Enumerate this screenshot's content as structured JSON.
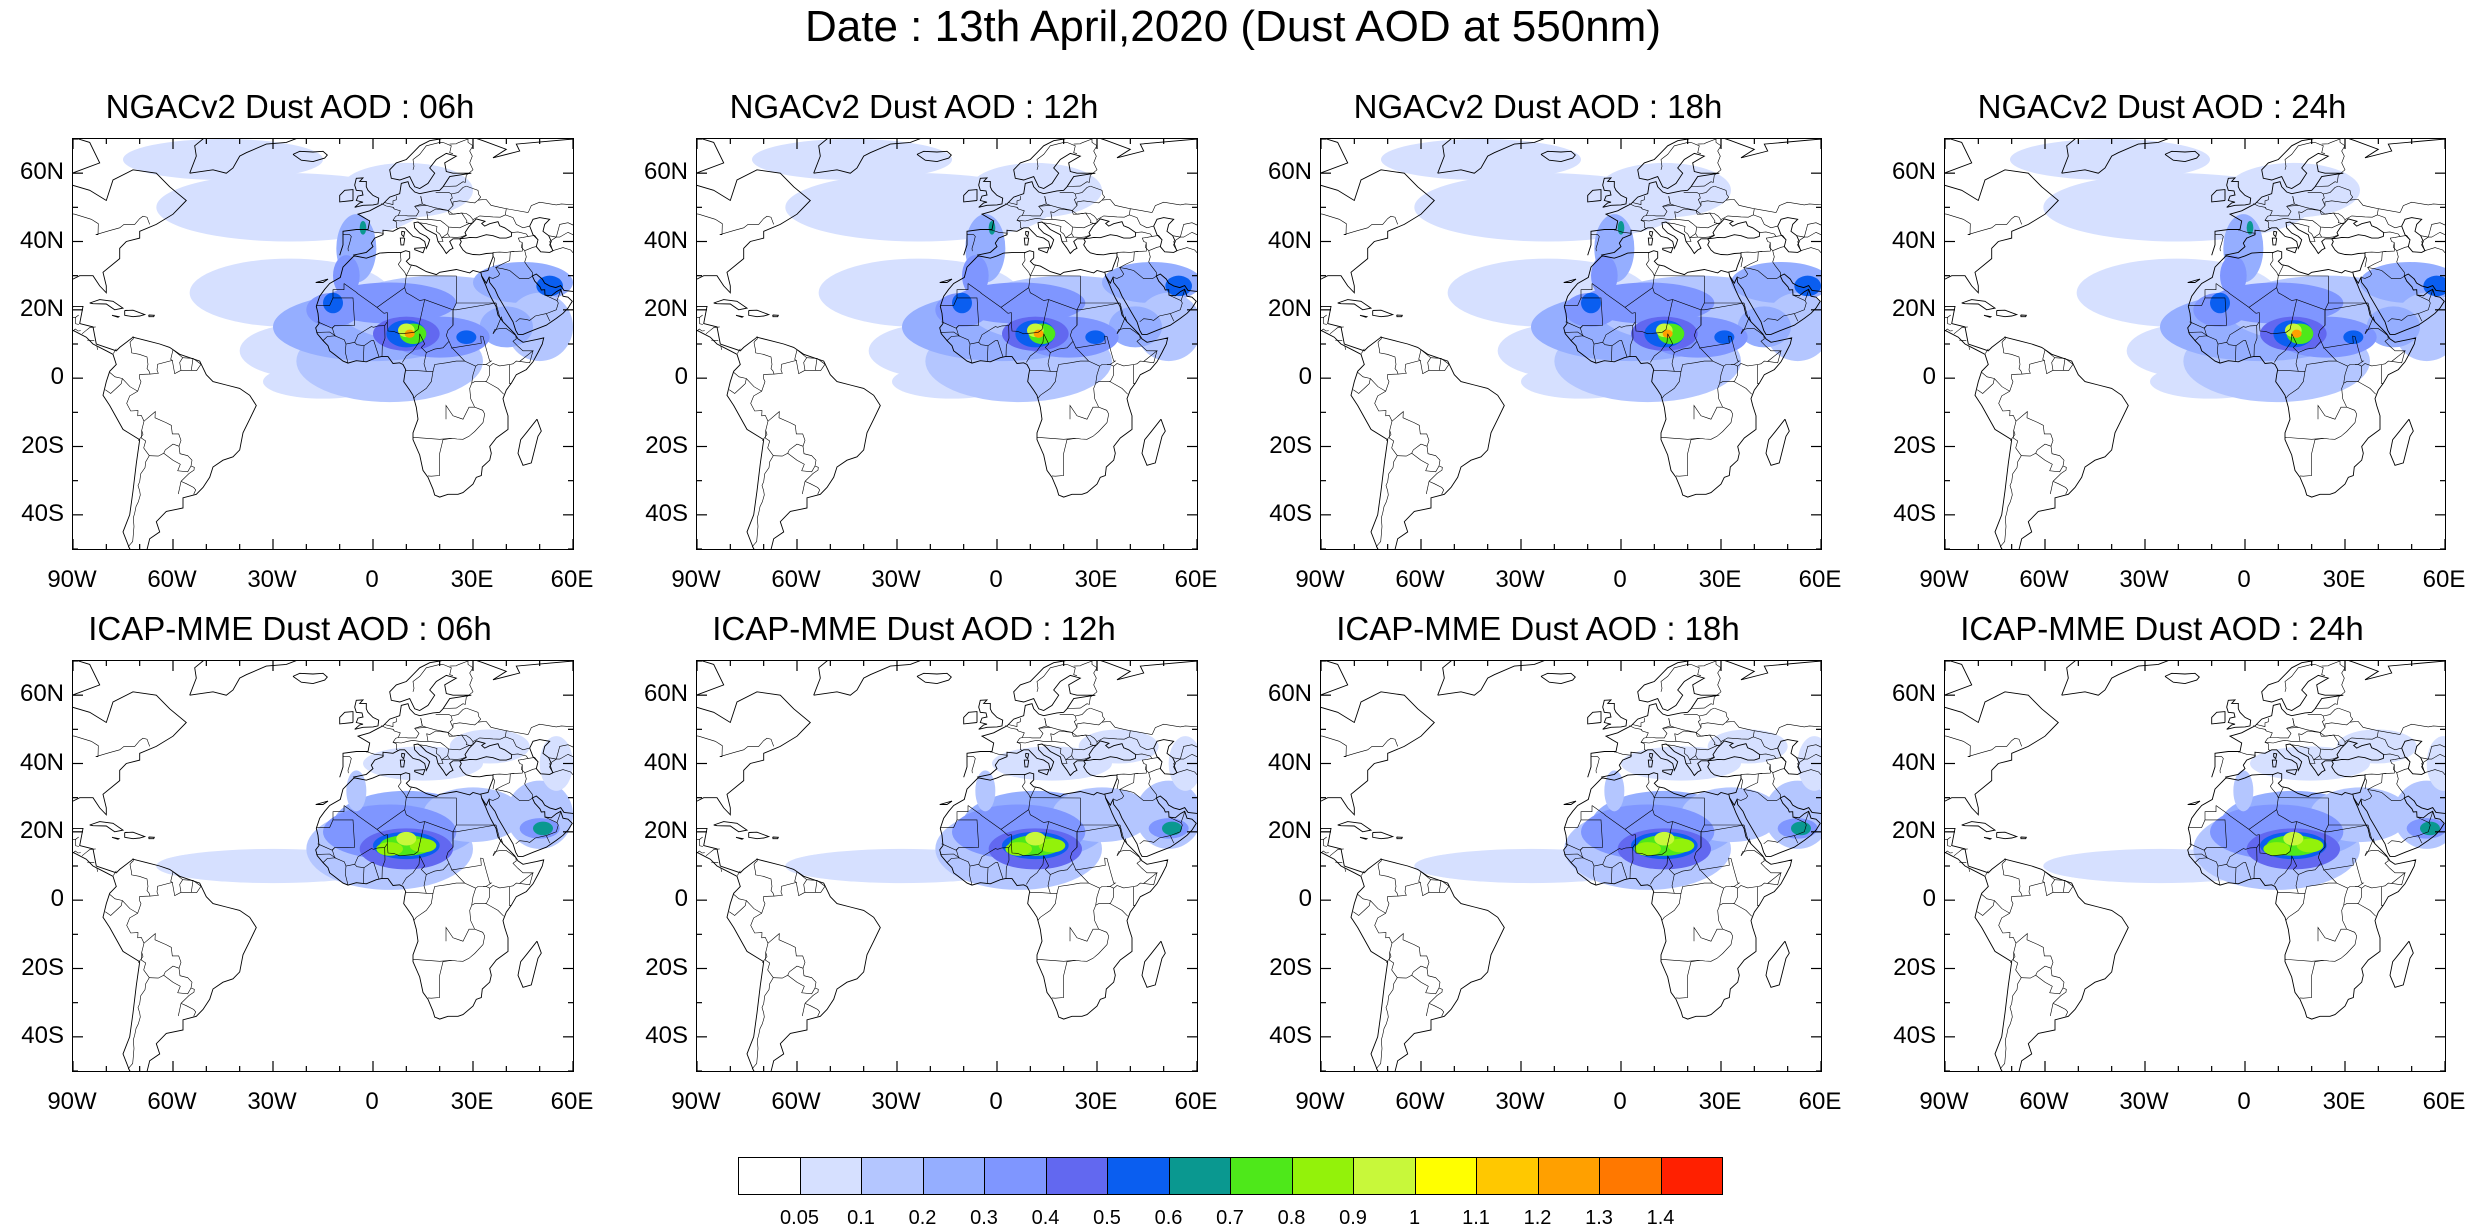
{
  "title": "Date : 13th April,2020 (Dust AOD at 550nm)",
  "panels": [
    {
      "title": "NGACv2 Dust AOD : 06h"
    },
    {
      "title": "NGACv2 Dust AOD : 12h"
    },
    {
      "title": "NGACv2 Dust AOD : 18h"
    },
    {
      "title": "NGACv2 Dust AOD : 24h"
    },
    {
      "title": "ICAP-MME Dust AOD : 06h"
    },
    {
      "title": "ICAP-MME Dust AOD : 12h"
    },
    {
      "title": "ICAP-MME Dust AOD : 18h"
    },
    {
      "title": "ICAP-MME Dust AOD : 24h"
    }
  ],
  "axes": {
    "lat_labels": [
      "60N",
      "40N",
      "20N",
      "0",
      "20S",
      "40S"
    ],
    "lat_values": [
      60,
      40,
      20,
      0,
      -20,
      -40
    ],
    "lon_labels": [
      "90W",
      "60W",
      "30W",
      "0",
      "30E",
      "60E"
    ],
    "lon_values": [
      -90,
      -60,
      -30,
      0,
      30,
      60
    ],
    "lon_range": [
      -90,
      60
    ],
    "lat_range": [
      -50,
      70
    ]
  },
  "colorbar": {
    "labels": [
      "0.05",
      "0.1",
      "0.2",
      "0.3",
      "0.4",
      "0.5",
      "0.6",
      "0.7",
      "0.8",
      "0.9",
      "1",
      "1.1",
      "1.2",
      "1.3",
      "1.4"
    ],
    "colors": [
      "#ffffff",
      "#d6e0ff",
      "#b4c6ff",
      "#95aeff",
      "#7f96ff",
      "#6268f0",
      "#0a5ef0",
      "#0a9890",
      "#4ee81a",
      "#93f20a",
      "#c8f83a",
      "#ffff00",
      "#ffc800",
      "#ffa000",
      "#ff7800",
      "#ff2000"
    ]
  }
}
